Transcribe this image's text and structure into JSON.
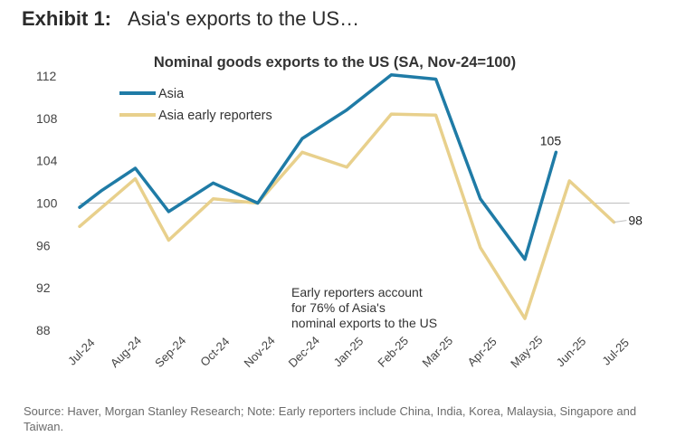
{
  "header": {
    "exhibit_label": "Exhibit 1:",
    "exhibit_title": "Asia's exports to the US…"
  },
  "chart_data": {
    "type": "line",
    "title": "Nominal goods exports to the US (SA, Nov-24=100)",
    "categories": [
      "Jul-24",
      "Aug-24",
      "Sep-24",
      "Oct-24",
      "Nov-24",
      "Dec-24",
      "Jan-25",
      "Feb-25",
      "Mar-25",
      "Apr-25",
      "May-25",
      "Jun-25",
      "Jul-25"
    ],
    "series": [
      {
        "name": "Asia",
        "color": "#1f7ba6",
        "points": [
          {
            "x": 0.0,
            "y": 99.6
          },
          {
            "x": 0.5,
            "y": 101.2
          },
          {
            "x": 1.25,
            "y": 103.3
          },
          {
            "x": 2.0,
            "y": 99.2
          },
          {
            "x": 3.0,
            "y": 101.9
          },
          {
            "x": 4.0,
            "y": 100.0
          },
          {
            "x": 5.0,
            "y": 106.1
          },
          {
            "x": 6.0,
            "y": 108.8
          },
          {
            "x": 7.0,
            "y": 112.1
          },
          {
            "x": 8.0,
            "y": 111.7
          },
          {
            "x": 9.0,
            "y": 100.4
          },
          {
            "x": 10.0,
            "y": 94.7
          },
          {
            "x": 10.7,
            "y": 104.8
          }
        ],
        "end_label": "105"
      },
      {
        "name": "Asia early reporters",
        "color": "#e8d08c",
        "points": [
          {
            "x": 0.0,
            "y": 97.8
          },
          {
            "x": 0.5,
            "y": 99.6
          },
          {
            "x": 1.25,
            "y": 102.3
          },
          {
            "x": 2.0,
            "y": 96.5
          },
          {
            "x": 3.0,
            "y": 100.4
          },
          {
            "x": 4.0,
            "y": 100.0
          },
          {
            "x": 5.0,
            "y": 104.8
          },
          {
            "x": 6.0,
            "y": 103.4
          },
          {
            "x": 7.0,
            "y": 108.4
          },
          {
            "x": 8.0,
            "y": 108.3
          },
          {
            "x": 9.0,
            "y": 95.8
          },
          {
            "x": 10.0,
            "y": 89.1
          },
          {
            "x": 11.0,
            "y": 102.1
          },
          {
            "x": 12.0,
            "y": 98.2
          }
        ],
        "end_label": "98"
      }
    ],
    "yticks": [
      88,
      92,
      96,
      100,
      104,
      108,
      112
    ],
    "ylim": [
      88,
      112
    ],
    "xlabel": "",
    "ylabel": "",
    "grid": false,
    "legend_position": "top-left",
    "annotation": "Early reporters account for 76% of Asia's nominal exports to the US"
  },
  "source_note": "Source: Haver, Morgan Stanley Research; Note: Early reporters include China, India, Korea, Malaysia, Singapore and Taiwan."
}
